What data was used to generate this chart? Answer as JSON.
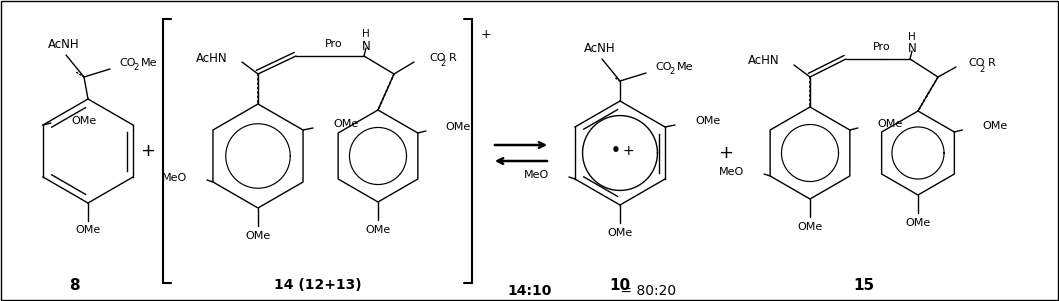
{
  "figure_width": 10.59,
  "figure_height": 3.01,
  "dpi": 100,
  "bg_color": "#ffffff",
  "border_color": "#000000",
  "line_color": "#000000",
  "ratio_text_1": "14:10",
  "ratio_text_2": " = 80:20",
  "compound_8_label": "8",
  "compound_14_label": "14 (12+13)",
  "compound_10_label": "10",
  "compound_15_label": "15"
}
